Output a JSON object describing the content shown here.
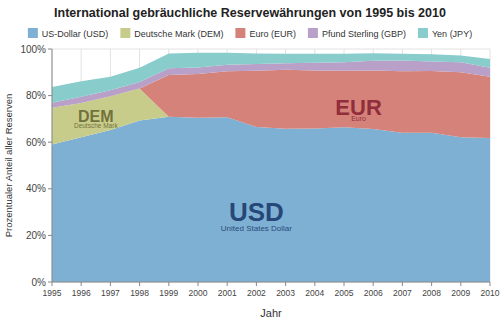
{
  "chart_data": {
    "type": "area",
    "stacked": true,
    "title": "International gebräuchliche Reservewährungen von 1995 bis 2010",
    "xlabel": "Jahr",
    "ylabel": "Prozentualer Anteil aller Reserven",
    "x": [
      1995,
      1996,
      1997,
      1998,
      1999,
      2000,
      2001,
      2002,
      2003,
      2004,
      2005,
      2006,
      2007,
      2008,
      2009,
      2010
    ],
    "series": [
      {
        "name": "US-Dollar (USD)",
        "color": "#7EB0D4",
        "values": [
          59.0,
          62.1,
          65.2,
          69.3,
          70.9,
          70.5,
          70.7,
          66.5,
          65.8,
          65.9,
          66.4,
          65.7,
          64.1,
          64.1,
          62.1,
          61.8
        ]
      },
      {
        "name": "Deutsche Mark (DEM)",
        "color": "#C8CC8A",
        "values": [
          15.8,
          14.7,
          14.5,
          13.8,
          0.0,
          0.0,
          0.0,
          0.0,
          0.0,
          0.0,
          0.0,
          0.0,
          0.0,
          0.0,
          0.0,
          0.0
        ]
      },
      {
        "name": "Euro (EUR)",
        "color": "#D4827A",
        "values": [
          0.0,
          0.0,
          0.0,
          0.0,
          17.9,
          18.8,
          19.8,
          24.2,
          25.3,
          24.9,
          24.3,
          25.1,
          26.3,
          26.5,
          27.9,
          26.3
        ]
      },
      {
        "name": "Pfund Sterling (GBP)",
        "color": "#B8A0C8",
        "values": [
          2.1,
          2.7,
          2.6,
          2.7,
          2.9,
          2.8,
          2.7,
          2.9,
          2.8,
          3.3,
          3.6,
          4.2,
          4.7,
          4.0,
          4.3,
          3.9
        ]
      },
      {
        "name": "Yen (JPY)",
        "color": "#88CCCC",
        "values": [
          6.8,
          6.7,
          5.8,
          6.2,
          6.4,
          6.3,
          5.2,
          4.5,
          4.1,
          3.9,
          3.7,
          3.2,
          2.9,
          3.1,
          2.9,
          3.7
        ]
      }
    ],
    "xlim": [
      1995,
      2010
    ],
    "ylim": [
      0,
      100
    ],
    "xticks": [
      1995,
      1996,
      1997,
      1998,
      1999,
      2000,
      2001,
      2002,
      2003,
      2004,
      2005,
      2006,
      2007,
      2008,
      2009,
      2010
    ],
    "yticks": [
      {
        "value": 0,
        "label": "0%"
      },
      {
        "value": 20,
        "label": "20%"
      },
      {
        "value": 40,
        "label": "40%"
      },
      {
        "value": 60,
        "label": "60%"
      },
      {
        "value": 80,
        "label": "80%"
      },
      {
        "value": 100,
        "label": "100%"
      }
    ],
    "grid": true,
    "legend": "top",
    "annotations": [
      {
        "text": "USD",
        "x": 2002,
        "y": 30,
        "color": "#1a3a6b"
      },
      {
        "text": "United States Dollar",
        "x": 2002,
        "y": 23,
        "color": "#1a3a6b"
      },
      {
        "text": "EUR",
        "x": 2005.5,
        "y": 75,
        "color": "#882233"
      },
      {
        "text": "Euro",
        "x": 2005.5,
        "y": 70,
        "color": "#882233"
      },
      {
        "text": "DEM",
        "x": 1996.5,
        "y": 71,
        "color": "#666633"
      },
      {
        "text": "Deutsche Mark",
        "x": 1996.5,
        "y": 67,
        "color": "#666633"
      }
    ]
  }
}
